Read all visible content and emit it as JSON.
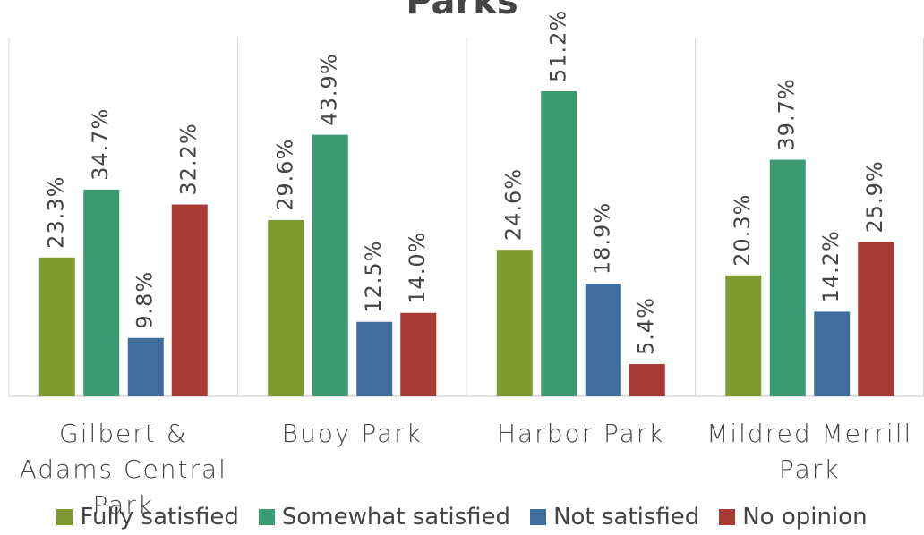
{
  "chart_data": {
    "type": "bar",
    "title": "Parks",
    "categories": [
      "Gilbert & Adams Central Park",
      "Buoy Park",
      "Harbor Park",
      "Mildred Merrill Park"
    ],
    "series": [
      {
        "name": "Fully satisfied",
        "color": "#7f9a2e",
        "values": [
          23.3,
          29.6,
          24.6,
          20.3
        ],
        "value_labels": [
          "23.3%",
          "29.6%",
          "24.6%",
          "20.3%"
        ]
      },
      {
        "name": "Somewhat satisfied",
        "color": "#3a9a72",
        "values": [
          34.7,
          43.9,
          51.2,
          39.7
        ],
        "value_labels": [
          "34.7%",
          "43.9%",
          "51.2%",
          "39.7%"
        ]
      },
      {
        "name": "Not satisfied",
        "color": "#3f6e9e",
        "values": [
          9.8,
          12.5,
          18.9,
          14.2
        ],
        "value_labels": [
          "9.8%",
          "12.5%",
          "18.9%",
          "14.2%"
        ]
      },
      {
        "name": "No opinion",
        "color": "#a83a33",
        "values": [
          32.2,
          14.0,
          5.4,
          25.9
        ],
        "value_labels": [
          "32.2%",
          "14.0%",
          "5.4%",
          "25.9%"
        ]
      }
    ]
  }
}
